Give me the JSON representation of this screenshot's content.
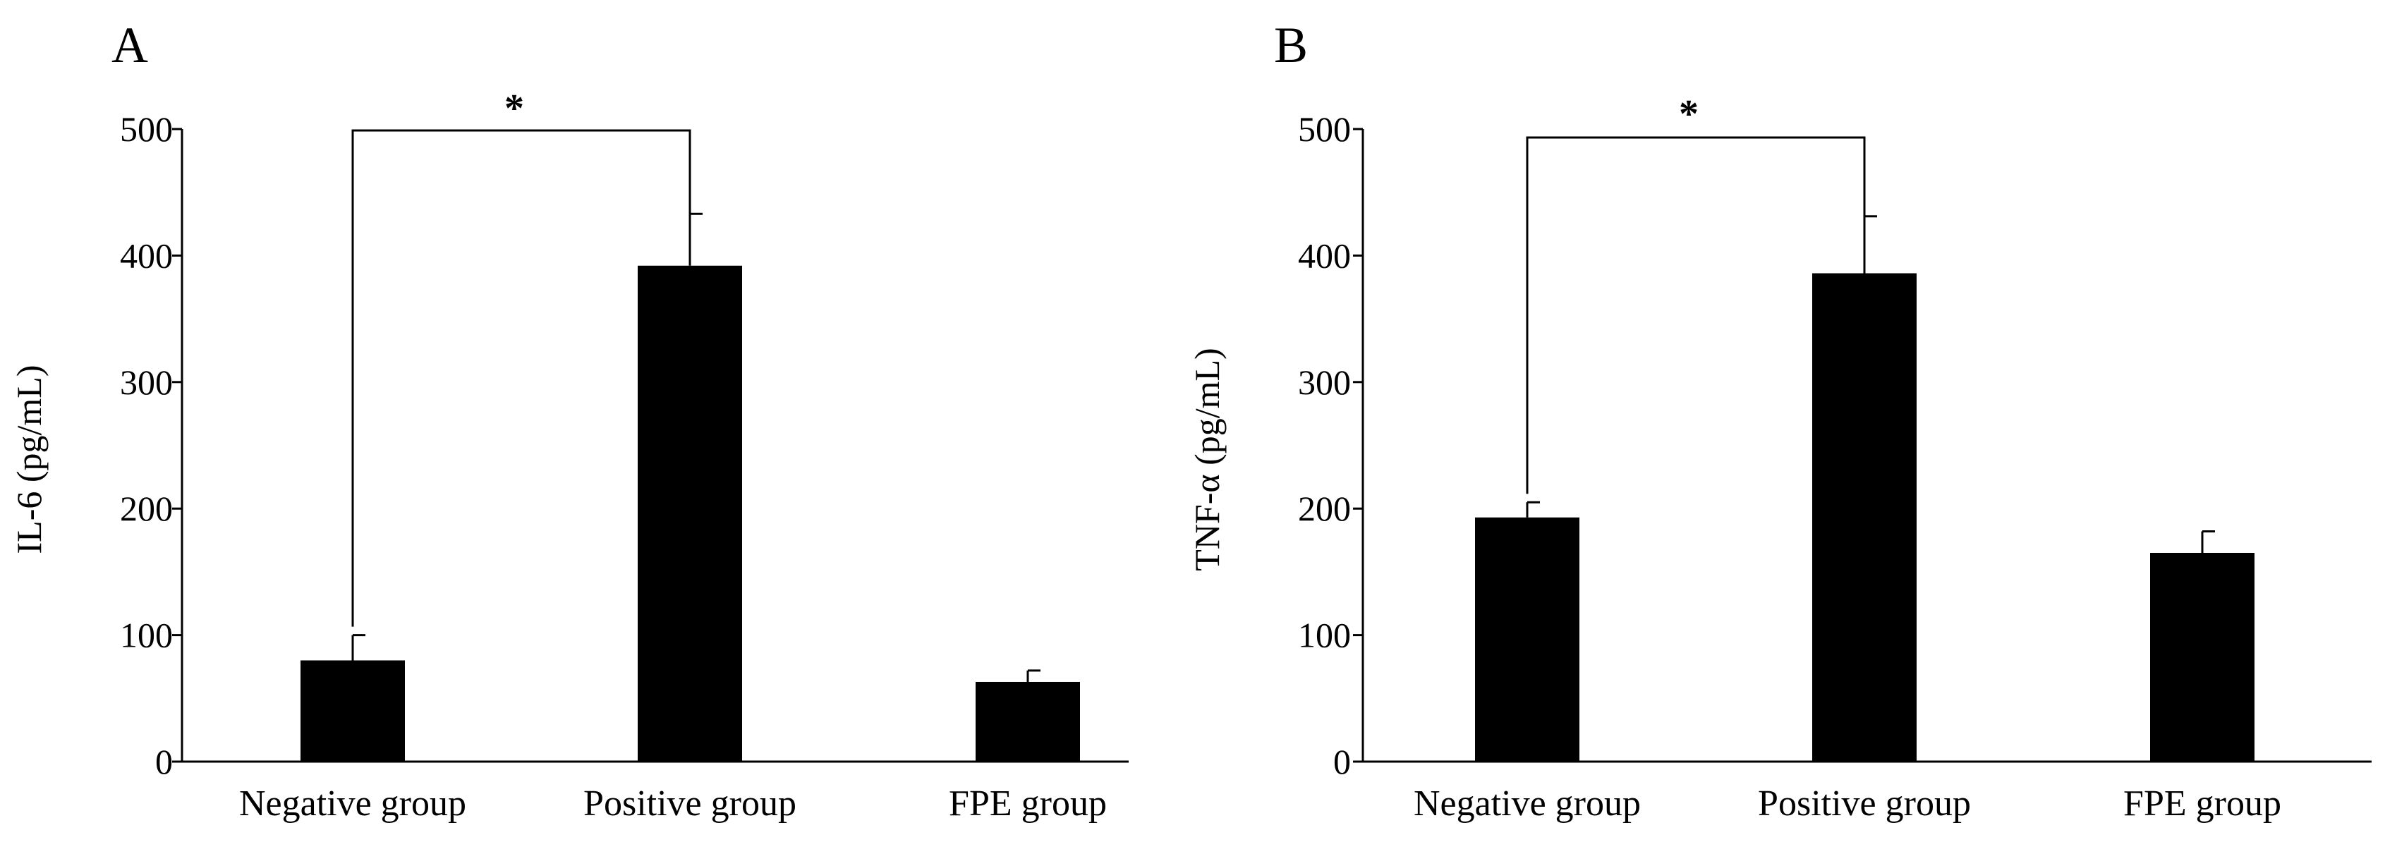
{
  "chart_data": [
    {
      "type": "bar",
      "panel_label": "A",
      "title": "",
      "xlabel": "",
      "ylabel": "IL-6 (pg/mL)",
      "categories": [
        "Negative group",
        "Positive group",
        "FPE group"
      ],
      "values": [
        80,
        392,
        63
      ],
      "error_up": [
        20,
        41,
        9
      ],
      "ylim": [
        0,
        500
      ],
      "yticks": [
        "0",
        "100",
        "200",
        "300",
        "400",
        "500"
      ],
      "bar_color": "#000000",
      "grid": false,
      "significance": {
        "from_category": 0,
        "to_category": 1,
        "label": "*"
      }
    },
    {
      "type": "bar",
      "panel_label": "B",
      "title": "",
      "xlabel": "",
      "ylabel": "TNF-α (pg/mL)",
      "categories": [
        "Negative group",
        "Positive group",
        "FPE group"
      ],
      "values": [
        193,
        386,
        165
      ],
      "error_up": [
        12,
        45,
        17
      ],
      "ylim": [
        0,
        500
      ],
      "yticks": [
        "0",
        "100",
        "200",
        "300",
        "400",
        "500"
      ],
      "bar_color": "#000000",
      "grid": false,
      "significance": {
        "from_category": 0,
        "to_category": 1,
        "label": "*"
      }
    }
  ]
}
